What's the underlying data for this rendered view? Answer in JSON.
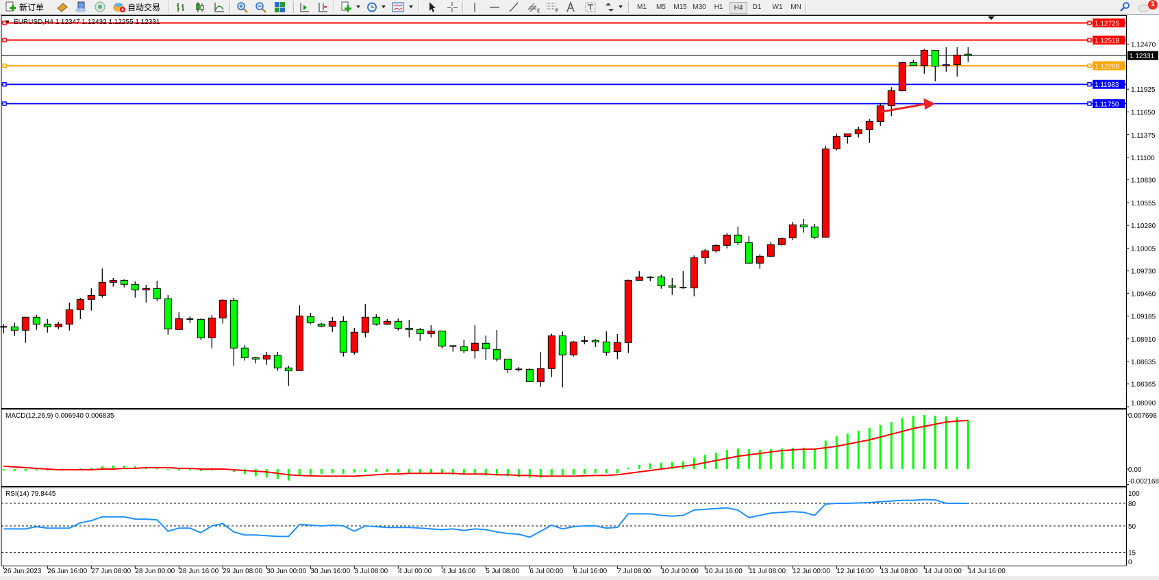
{
  "toolbar": {
    "new_order_label": "新订单",
    "auto_trading_label": "自动交易",
    "icons": [
      "new-order-icon",
      "history-center-icon",
      "market-watch-icon",
      "signals-icon",
      "auto-trading-icon",
      "bar-chart-icon",
      "candlestick-icon",
      "line-chart-icon",
      "zoom-in-icon",
      "zoom-out-icon",
      "tile-windows-icon",
      "chart-shift-icon",
      "auto-scroll-icon",
      "indicators-icon",
      "periods-icon",
      "templates-icon",
      "cursor-icon",
      "crosshair-icon",
      "vertical-line-icon",
      "horizontal-line-icon",
      "trendline-icon",
      "equidistant-channel-icon",
      "fibonacci-icon",
      "text-icon",
      "text-label-icon",
      "arrows-icon",
      "search-icon",
      "chat-icon"
    ],
    "timeframes": [
      "M1",
      "M5",
      "M15",
      "M30",
      "H1",
      "H4",
      "D1",
      "W1",
      "MN"
    ],
    "active_timeframe": "H4",
    "notification_count": "1"
  },
  "chart_data": {
    "type": "candlestick",
    "symbol": "EURUSD",
    "timeframe": "H4",
    "header": "EURUSD,H4  1.12347 1.12432 1.12255 1.12331",
    "fields": [
      "open",
      "high",
      "low",
      "close"
    ],
    "colors": {
      "bull": "#ff0000",
      "bear": "#00ff00",
      "outline": "#000000"
    },
    "candles": [
      [
        1.09055,
        1.09088,
        1.08978,
        1.09058
      ],
      [
        1.09055,
        1.09107,
        1.08945,
        1.09014
      ],
      [
        1.09014,
        1.09175,
        1.08862,
        1.09171
      ],
      [
        1.09171,
        1.09198,
        1.09019,
        1.09088
      ],
      [
        1.09088,
        1.09149,
        1.08986,
        1.09055
      ],
      [
        1.09055,
        1.09116,
        1.09027,
        1.09088
      ],
      [
        1.09088,
        1.09347,
        1.09011,
        1.09262
      ],
      [
        1.09262,
        1.09405,
        1.09149,
        1.09386
      ],
      [
        1.09386,
        1.09521,
        1.09251,
        1.09435
      ],
      [
        1.09435,
        1.0976,
        1.09408,
        1.09592
      ],
      [
        1.09592,
        1.09645,
        1.0954,
        1.09617
      ],
      [
        1.09617,
        1.09628,
        1.09532,
        1.09568
      ],
      [
        1.09568,
        1.09603,
        1.09408,
        1.09501
      ],
      [
        1.09501,
        1.09562,
        1.0935,
        1.09518
      ],
      [
        1.09518,
        1.09612,
        1.09366,
        1.09394
      ],
      [
        1.09394,
        1.09438,
        1.08961,
        1.0903
      ],
      [
        1.09022,
        1.09231,
        1.09022,
        1.09154
      ],
      [
        1.09149,
        1.09182,
        1.09102,
        1.09151
      ],
      [
        1.09146,
        1.09157,
        1.08895,
        1.08923
      ],
      [
        1.08923,
        1.09198,
        1.08796,
        1.09162
      ],
      [
        1.09162,
        1.09388,
        1.09094,
        1.09377
      ],
      [
        1.09377,
        1.09405,
        1.08586,
        1.08799
      ],
      [
        1.08799,
        1.08834,
        1.08647,
        1.08683
      ],
      [
        1.08683,
        1.08694,
        1.08614,
        1.08666
      ],
      [
        1.08666,
        1.08752,
        1.08597,
        1.0871
      ],
      [
        1.0871,
        1.08752,
        1.08523,
        1.08559
      ],
      [
        1.08559,
        1.08586,
        1.08341,
        1.08526
      ],
      [
        1.08526,
        1.09314,
        1.08526,
        1.09187
      ],
      [
        1.09179,
        1.09223,
        1.09088,
        1.09105
      ],
      [
        1.09088,
        1.09099,
        1.09052,
        1.09063
      ],
      [
        1.09063,
        1.09173,
        1.08994,
        1.09121
      ],
      [
        1.09121,
        1.09182,
        1.08697,
        1.08749
      ],
      [
        1.08749,
        1.09041,
        1.08721,
        1.08989
      ],
      [
        1.08989,
        1.09331,
        1.08928,
        1.09171
      ],
      [
        1.09171,
        1.09207,
        1.09069,
        1.09088
      ],
      [
        1.09088,
        1.09149,
        1.09077,
        1.09121
      ],
      [
        1.09121,
        1.09157,
        1.09011,
        1.09038
      ],
      [
        1.09038,
        1.0914,
        1.08928,
        1.09022
      ],
      [
        1.09022,
        1.09041,
        1.08887,
        1.08972
      ],
      [
        1.08972,
        1.09074,
        1.08928,
        1.09005
      ],
      [
        1.09005,
        1.09005,
        1.08796,
        1.08823
      ],
      [
        1.08823,
        1.08832,
        1.08755,
        1.08818
      ],
      [
        1.08815,
        1.08901,
        1.08738,
        1.08766
      ],
      [
        1.08766,
        1.09074,
        1.08672,
        1.08857
      ],
      [
        1.08857,
        1.0895,
        1.08655,
        1.0879
      ],
      [
        1.08782,
        1.09016,
        1.08639,
        1.08666
      ],
      [
        1.08666,
        1.08666,
        1.08498,
        1.08542
      ],
      [
        1.08542,
        1.0857,
        1.08515,
        1.08545
      ],
      [
        1.08542,
        1.08553,
        1.08393,
        1.08393
      ],
      [
        1.08393,
        1.08752,
        1.08333,
        1.08551
      ],
      [
        1.08551,
        1.08975,
        1.08449,
        1.08947
      ],
      [
        1.08947,
        1.09,
        1.08325,
        1.08716
      ],
      [
        1.08716,
        1.08884,
        1.08697,
        1.08873
      ],
      [
        1.08884,
        1.08942,
        1.08845,
        1.08886
      ],
      [
        1.0889,
        1.08906,
        1.08812,
        1.08873
      ],
      [
        1.08873,
        1.09,
        1.08705,
        1.08749
      ],
      [
        1.08755,
        1.08967,
        1.08664,
        1.08865
      ],
      [
        1.08865,
        1.09625,
        1.08738,
        1.09617
      ],
      [
        1.09617,
        1.09727,
        1.09617,
        1.09658
      ],
      [
        1.09653,
        1.09667,
        1.09606,
        1.0965
      ],
      [
        1.09659,
        1.09686,
        1.09515,
        1.09551
      ],
      [
        1.09551,
        1.09645,
        1.09441,
        1.09535
      ],
      [
        1.09529,
        1.09727,
        1.09515,
        1.09532
      ],
      [
        1.09526,
        1.09918,
        1.09424,
        1.0989
      ],
      [
        1.0989,
        1.09992,
        1.09813,
        1.09973
      ],
      [
        1.09973,
        1.1005,
        1.09953,
        1.10039
      ],
      [
        1.10039,
        1.1019,
        1.10003,
        1.10163
      ],
      [
        1.10163,
        1.10265,
        1.10044,
        1.10072
      ],
      [
        1.10072,
        1.10149,
        1.09824,
        1.09824
      ],
      [
        1.09824,
        1.09931,
        1.09755,
        1.09907
      ],
      [
        1.09907,
        1.1008,
        1.09896,
        1.10047
      ],
      [
        1.10047,
        1.10133,
        1.10036,
        1.10122
      ],
      [
        1.1013,
        1.10323,
        1.10102,
        1.10287
      ],
      [
        1.10287,
        1.10356,
        1.10193,
        1.10262
      ],
      [
        1.10262,
        1.10298,
        1.10119,
        1.10138
      ],
      [
        1.10138,
        1.11238,
        1.10138,
        1.11204
      ],
      [
        1.11204,
        1.11386,
        1.11185,
        1.11353
      ],
      [
        1.11353,
        1.1139,
        1.11268,
        1.11386
      ],
      [
        1.11386,
        1.11472,
        1.11342,
        1.11436
      ],
      [
        1.11436,
        1.11563,
        1.11276,
        1.11535
      ],
      [
        1.11535,
        1.11761,
        1.11483,
        1.11725
      ],
      [
        1.11725,
        1.11949,
        1.11599,
        1.11907
      ],
      [
        1.11907,
        1.12257,
        1.11899,
        1.12246
      ],
      [
        1.12246,
        1.12282,
        1.1221,
        1.1221
      ],
      [
        1.1221,
        1.12414,
        1.12111,
        1.12395
      ],
      [
        1.12395,
        1.12398,
        1.1202,
        1.12202
      ],
      [
        1.1221,
        1.12431,
        1.12136,
        1.12221
      ],
      [
        1.12221,
        1.12431,
        1.12078,
        1.12337
      ],
      [
        1.12347,
        1.12432,
        1.12255,
        1.12331
      ]
    ],
    "price_range": [
      1.0809,
      1.12725
    ],
    "price_ticks": [
      "1.12470",
      "1.11925",
      "1.11650",
      "1.11375",
      "1.11100",
      "1.10830",
      "1.10555",
      "1.10280",
      "1.10005",
      "1.09730",
      "1.09460",
      "1.09185",
      "1.08910",
      "1.08635",
      "1.08365",
      "1.08090"
    ],
    "horizontal_lines": [
      {
        "price": "1.12725",
        "color": "#ff0000",
        "label_text_color": "#ffffff"
      },
      {
        "price": "1.12518",
        "color": "#ff0000",
        "label_text_color": "#ffffff"
      },
      {
        "price": "1.12331",
        "color": "#000000",
        "label_text_color": "#ffffff",
        "kind": "current-price"
      },
      {
        "price": "1.12208",
        "color": "#ffa500",
        "label_text_color": "#ffffff"
      },
      {
        "price": "1.11983",
        "color": "#0000ff",
        "label_text_color": "#ffffff"
      },
      {
        "price": "1.11750",
        "color": "#0000ff",
        "label_text_color": "#ffffff"
      }
    ],
    "annotation_arrow": {
      "color": "#ee2222",
      "from": [
        80,
        1.1165
      ],
      "to": [
        85,
        1.1175
      ]
    },
    "time_labels": [
      {
        "bar": 0,
        "text": "26 Jun 2023"
      },
      {
        "bar": 4,
        "text": "26 Jun 16:00"
      },
      {
        "bar": 8,
        "text": "27 Jun 08:00"
      },
      {
        "bar": 12,
        "text": "28 Jun 00:00"
      },
      {
        "bar": 16,
        "text": "28 Jun 16:00"
      },
      {
        "bar": 20,
        "text": "29 Jun 08:00"
      },
      {
        "bar": 24,
        "text": "30 Jun 00:00"
      },
      {
        "bar": 28,
        "text": "30 Jun 16:00"
      },
      {
        "bar": 32,
        "text": "3 Jul 08:00"
      },
      {
        "bar": 36,
        "text": "4 Jul 00:00"
      },
      {
        "bar": 40,
        "text": "4 Jul 16:00"
      },
      {
        "bar": 44,
        "text": "5 Jul 08:00"
      },
      {
        "bar": 48,
        "text": "6 Jul 00:00"
      },
      {
        "bar": 52,
        "text": "6 Jul 16:00"
      },
      {
        "bar": 56,
        "text": "7 Jul 08:00"
      },
      {
        "bar": 60,
        "text": "10 Jul 00:00"
      },
      {
        "bar": 64,
        "text": "10 Jul 16:00"
      },
      {
        "bar": 68,
        "text": "11 Jul 08:00"
      },
      {
        "bar": 72,
        "text": "12 Jul 00:00"
      },
      {
        "bar": 76,
        "text": "12 Jul 16:00"
      },
      {
        "bar": 80,
        "text": "13 Jul 08:00"
      },
      {
        "bar": 84,
        "text": "14 Jul 00:00"
      },
      {
        "bar": 88,
        "text": "14 Jul 16:00"
      }
    ],
    "macd": {
      "label": "MACD(12,26,9) 0.006940 0.006835",
      "range": [
        -0.002168,
        0.007698
      ],
      "ticks": [
        "0.007698",
        "0.00",
        "-0.002168"
      ],
      "histogram_color": "#00ff00",
      "signal_color": "#ff0000",
      "main": [
        -0.0002,
        -0.0003,
        -0.0003,
        -0.0002,
        -0.0002,
        -0.0001,
        0,
        0.0001,
        0.0002,
        0.0004,
        0.0005,
        0.0005,
        0.0004,
        0.0003,
        0.0002,
        -0.0001,
        -0.0002,
        -0.0002,
        -0.0003,
        -0.0002,
        -0.0001,
        -0.0004,
        -0.0007,
        -0.001,
        -0.0012,
        -0.0014,
        -0.0016,
        -0.001,
        -0.0008,
        -0.0007,
        -0.0006,
        -0.0007,
        -0.0005,
        -0.0004,
        -0.0004,
        -0.0004,
        -0.0005,
        -0.0005,
        -0.0006,
        -0.0006,
        -0.0007,
        -0.0008,
        -0.0008,
        -0.0008,
        -0.0009,
        -0.0009,
        -0.001,
        -0.0011,
        -0.0012,
        -0.0012,
        -0.0009,
        -0.0009,
        -0.0008,
        -0.0007,
        -0.0006,
        -0.0006,
        -0.0006,
        0.0002,
        0.0006,
        0.0008,
        0.0009,
        0.001,
        0.0011,
        0.0016,
        0.002,
        0.0023,
        0.0027,
        0.0029,
        0.0028,
        0.0027,
        0.0028,
        0.0029,
        0.003,
        0.003,
        0.0029,
        0.004,
        0.0046,
        0.005,
        0.0054,
        0.0058,
        0.0062,
        0.0066,
        0.0072,
        0.0075,
        0.0076,
        0.0075,
        0.0074,
        0.0073,
        0.00694
      ],
      "signal": [
        0.0004,
        0.0003,
        0.0002,
        0.0001,
        0,
        -0.0001,
        -0.0001,
        -0.0001,
        -0.0001,
        0,
        0,
        0.0001,
        0.0001,
        0.0002,
        0.0002,
        0.0002,
        0.0001,
        0.0001,
        0,
        0,
        0,
        -0.0001,
        -0.0002,
        -0.0003,
        -0.0004,
        -0.0006,
        -0.0008,
        -0.0009,
        -0.00095,
        -0.001,
        -0.001,
        -0.001,
        -0.001,
        -0.0009,
        -0.0008,
        -0.0007,
        -0.0007,
        -0.0006,
        -0.0006,
        -0.0006,
        -0.0006,
        -0.0006,
        -0.0007,
        -0.0007,
        -0.0007,
        -0.0008,
        -0.0008,
        -0.0009,
        -0.0009,
        -0.001,
        -0.001,
        -0.001,
        -0.001,
        -0.00095,
        -0.0009,
        -0.0009,
        -0.0008,
        -0.0006,
        -0.0004,
        -0.0002,
        0,
        0.0002,
        0.0004,
        0.0006,
        0.0009,
        0.0012,
        0.0015,
        0.0018,
        0.002,
        0.0022,
        0.0024,
        0.0026,
        0.0027,
        0.0028,
        0.0028,
        0.003,
        0.0032,
        0.0035,
        0.0038,
        0.0041,
        0.0045,
        0.0049,
        0.0053,
        0.0057,
        0.006,
        0.0063,
        0.0066,
        0.00675,
        0.006835
      ]
    },
    "rsi": {
      "label": "RSI(14) 79.8445",
      "range": [
        0,
        100
      ],
      "ticks": [
        "100",
        "80",
        "50",
        "15",
        "0"
      ],
      "levels": [
        80,
        50,
        15
      ],
      "color": "#1e90ff",
      "values": [
        46,
        46,
        46,
        49,
        47,
        47,
        47,
        54,
        57,
        62,
        62,
        62,
        59,
        59,
        58,
        43,
        47,
        47,
        41,
        50,
        53,
        42,
        38,
        38,
        37,
        36,
        36,
        52,
        51,
        50,
        51,
        50,
        43,
        50,
        49,
        48,
        48,
        48,
        47,
        46,
        45,
        46,
        44,
        46,
        45,
        42,
        40,
        39,
        35,
        43,
        51,
        46,
        49,
        50,
        50,
        47,
        48,
        66,
        66,
        66,
        64,
        63,
        64,
        71,
        72,
        73,
        74,
        71,
        61,
        64,
        67,
        68,
        69,
        68,
        64,
        79,
        80,
        80,
        80.5,
        81,
        82,
        83,
        84,
        84,
        85,
        84.5,
        80,
        80,
        79.8445
      ]
    }
  }
}
